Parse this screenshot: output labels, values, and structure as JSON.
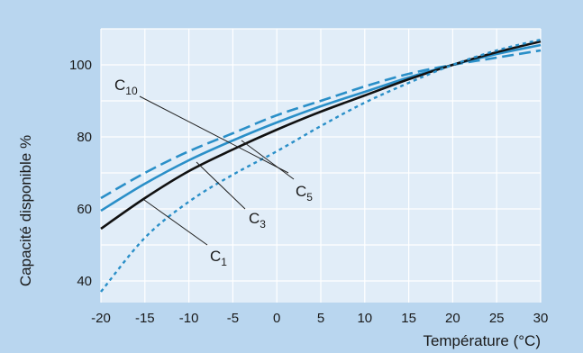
{
  "chart_data": {
    "type": "line",
    "title": "",
    "xlabel": "Température (°C)",
    "ylabel": "Capacité disponible %",
    "xlim": [
      -20,
      30
    ],
    "ylim": [
      34,
      110
    ],
    "x_ticks": [
      -20,
      -15,
      -10,
      -5,
      0,
      5,
      10,
      15,
      20,
      25,
      30
    ],
    "y_ticks": [
      40,
      60,
      80,
      100
    ],
    "grid": true,
    "legend": "none",
    "series": [
      {
        "name": "C10",
        "color": "#2a8fc8",
        "style": "dashed",
        "x": [
          -20,
          -15,
          -10,
          -5,
          0,
          5,
          10,
          15,
          20,
          25,
          30
        ],
        "y": [
          63,
          70,
          76,
          81,
          86,
          90,
          94,
          97.5,
          100,
          102,
          104
        ]
      },
      {
        "name": "C5",
        "color": "#2a8fc8",
        "style": "solid",
        "x": [
          -20,
          -15,
          -10,
          -5,
          0,
          5,
          10,
          15,
          20,
          25,
          30
        ],
        "y": [
          59.5,
          67,
          73.5,
          79,
          84,
          88.5,
          92.5,
          96.5,
          100,
          103,
          105.5
        ]
      },
      {
        "name": "C3",
        "color": "#111111",
        "style": "solid",
        "x": [
          -20,
          -15,
          -10,
          -5,
          0,
          5,
          10,
          15,
          20,
          25,
          30
        ],
        "y": [
          54.5,
          63,
          70.5,
          76.5,
          82,
          87,
          91.5,
          96,
          100,
          103.5,
          106.5
        ]
      },
      {
        "name": "C1",
        "color": "#2a8fc8",
        "style": "dotted",
        "x": [
          -20,
          -15,
          -10,
          -5,
          0,
          5,
          10,
          15,
          20,
          25,
          30
        ],
        "y": [
          37,
          52,
          62,
          69.5,
          76,
          83,
          89.5,
          95,
          100,
          104,
          107
        ]
      }
    ],
    "annotations": [
      {
        "main": "C",
        "sub": "10",
        "series": "C10"
      },
      {
        "main": "C",
        "sub": "5",
        "series": "C5"
      },
      {
        "main": "C",
        "sub": "3",
        "series": "C3"
      },
      {
        "main": "C",
        "sub": "1",
        "series": "C1"
      }
    ]
  }
}
